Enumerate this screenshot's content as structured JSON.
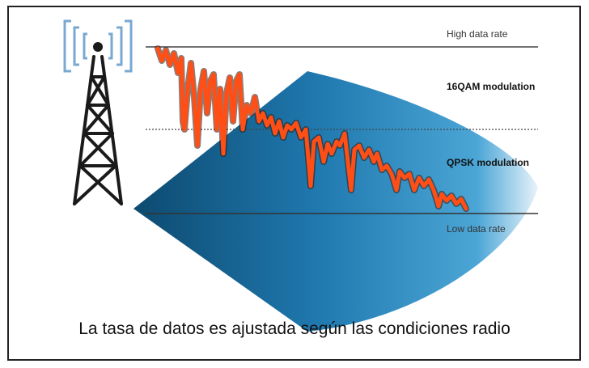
{
  "labels": {
    "high_rate": "High data rate",
    "mod_16qam": "16QAM modulation",
    "mod_qpsk": "QPSK modulation",
    "low_rate": "Low data rate"
  },
  "caption": "La tasa de datos es ajustada según las condiciones radio",
  "icons": {
    "tower": "radio-tower-icon",
    "signal": "signal-waves-icon"
  },
  "colors": {
    "beam_dark": "#0b4f78",
    "beam_light": "#4aa8d8",
    "rate_curve": "#ff4e16",
    "tower": "#1a1a1a",
    "signal_waves": "#7aa8d0"
  }
}
